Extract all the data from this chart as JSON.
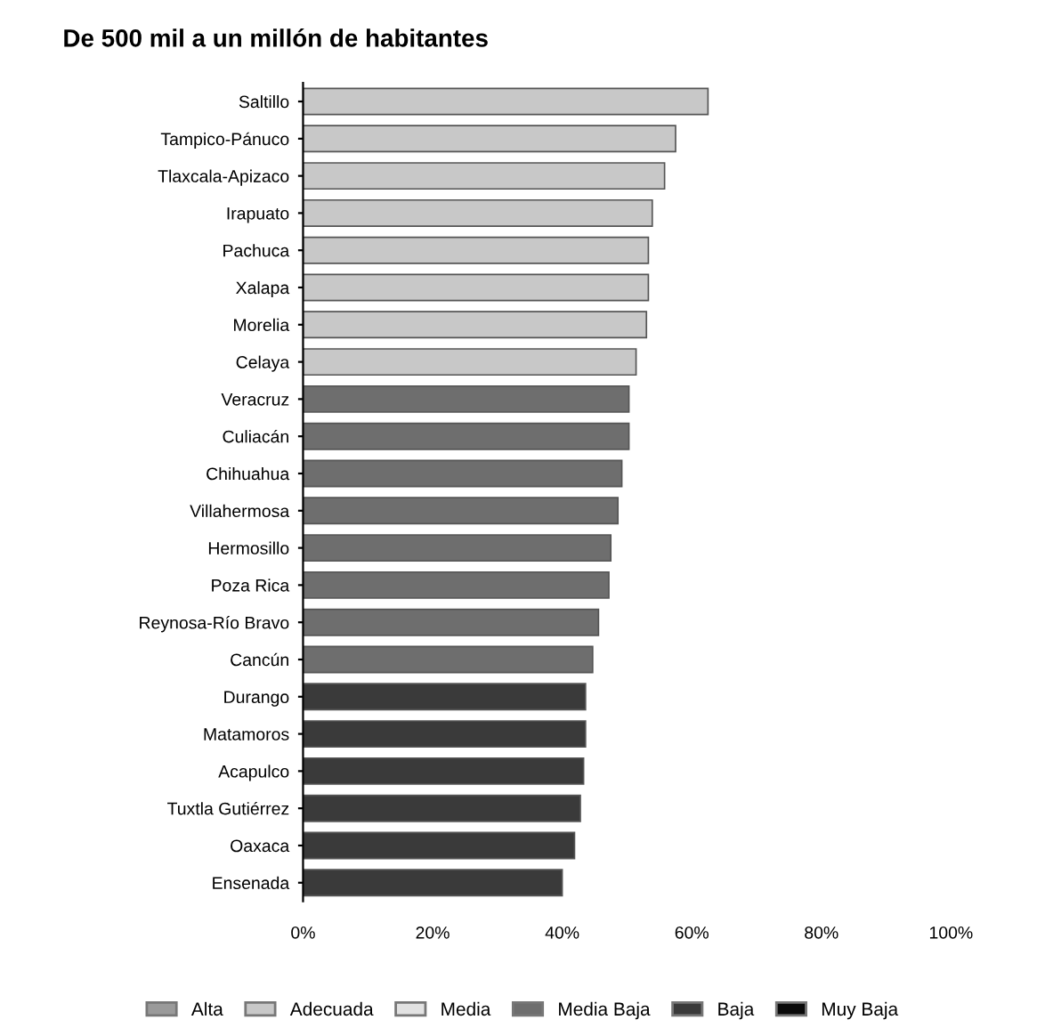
{
  "chart_data": {
    "type": "bar",
    "orientation": "horizontal",
    "title": "De 500 mil a un millón de habitantes",
    "categories": [
      "Saltillo",
      "Tampico-Pánuco",
      "Tlaxcala-Apizaco",
      "Irapuato",
      "Pachuca",
      "Xalapa",
      "Morelia",
      "Celaya",
      "Veracruz",
      "Culiacán",
      "Chihuahua",
      "Villahermosa",
      "Hermosillo",
      "Poza Rica",
      "Reynosa-Río Bravo",
      "Cancún",
      "Durango",
      "Matamoros",
      "Acapulco",
      "Tuxtla Gutiérrez",
      "Oaxaca",
      "Ensenada"
    ],
    "series": [
      {
        "name": "Alta",
        "color": "#9a9a9a",
        "values": [
          null,
          null,
          null,
          null,
          null,
          null,
          null,
          null,
          null,
          null,
          null,
          null,
          null,
          null,
          null,
          null,
          null,
          null,
          null,
          null,
          null,
          null
        ]
      },
      {
        "name": "Adecuada",
        "color": "#c8c8c8",
        "values": [
          62.5,
          57.5,
          55.8,
          53.9,
          53.3,
          53.3,
          53,
          51.4,
          null,
          null,
          null,
          null,
          null,
          null,
          null,
          null,
          null,
          null,
          null,
          null,
          null,
          null
        ]
      },
      {
        "name": "Media",
        "color": "#e2e2e2",
        "values": [
          null,
          null,
          null,
          null,
          null,
          null,
          null,
          null,
          null,
          null,
          null,
          null,
          null,
          null,
          null,
          null,
          null,
          null,
          null,
          null,
          null,
          null
        ]
      },
      {
        "name": "Media Baja",
        "color": "#6e6e6e",
        "values": [
          null,
          null,
          null,
          null,
          null,
          null,
          null,
          null,
          50.3,
          50.3,
          49.2,
          48.6,
          47.5,
          47.2,
          45.6,
          44.7,
          null,
          null,
          null,
          null,
          null,
          null
        ]
      },
      {
        "name": "Baja",
        "color": "#3a3a3a",
        "values": [
          null,
          null,
          null,
          null,
          null,
          null,
          null,
          null,
          null,
          null,
          null,
          null,
          null,
          null,
          null,
          null,
          43.6,
          43.6,
          43.3,
          42.8,
          41.9,
          40
        ]
      },
      {
        "name": "Muy Baja",
        "color": "#0a0a0a",
        "values": [
          null,
          null,
          null,
          null,
          null,
          null,
          null,
          null,
          null,
          null,
          null,
          null,
          null,
          null,
          null,
          null,
          null,
          null,
          null,
          null,
          null,
          null
        ]
      }
    ],
    "xlim": [
      0,
      100
    ],
    "xticks": [
      {
        "value": 0,
        "label": "0%"
      },
      {
        "value": 20,
        "label": "20%"
      },
      {
        "value": 40,
        "label": "40%"
      },
      {
        "value": 60,
        "label": "60%"
      },
      {
        "value": 80,
        "label": "80%"
      },
      {
        "value": 100,
        "label": "100%"
      }
    ],
    "legend": "bottom",
    "grid": false
  }
}
